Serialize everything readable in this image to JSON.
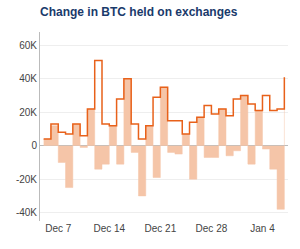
{
  "chart_data": {
    "type": "line",
    "title": "Change in BTC held on exchanges",
    "categories": [
      null,
      null,
      "Dec 7",
      null,
      null,
      null,
      null,
      null,
      null,
      "Dec 14",
      null,
      null,
      null,
      null,
      null,
      null,
      "Dec 21",
      null,
      null,
      null,
      null,
      null,
      null,
      "Dec 28",
      null,
      null,
      null,
      null,
      null,
      null,
      "Jan 4",
      null,
      null,
      null
    ],
    "series": [
      {
        "type": "area",
        "color": "#f5c5a8",
        "line_style": "steps",
        "values": [
          4000,
          12000,
          -10000,
          -25000,
          13000,
          -1000,
          22000,
          -14000,
          -11000,
          12000,
          -11000,
          40000,
          -4000,
          -30000,
          12000,
          -19000,
          35000,
          -4000,
          -5000,
          7000,
          -20000,
          17000,
          -7000,
          -7000,
          22000,
          -6000,
          -3000,
          30000,
          -11000,
          21000,
          -2000,
          -14000,
          -38000,
          41000
        ]
      },
      {
        "type": "line",
        "color": "#e8611a",
        "line_style": "steps",
        "values": [
          4000,
          13000,
          8000,
          7000,
          13000,
          6000,
          22000,
          51000,
          13000,
          12000,
          28000,
          40000,
          13000,
          4000,
          12000,
          29000,
          35000,
          15000,
          15000,
          7000,
          14000,
          17000,
          24000,
          19000,
          22000,
          18000,
          28000,
          30000,
          25000,
          21000,
          30000,
          21000,
          22000,
          41000
        ]
      }
    ],
    "ylim": [
      -45000,
      68000
    ],
    "yticks": [
      {
        "value": -40000,
        "label": "-40K"
      },
      {
        "value": -20000,
        "label": "-20K"
      },
      0,
      {
        "value": 20000,
        "label": "20K"
      },
      {
        "value": 40000,
        "label": "40K"
      },
      {
        "value": 60000,
        "label": "60K"
      }
    ],
    "grid": true
  }
}
